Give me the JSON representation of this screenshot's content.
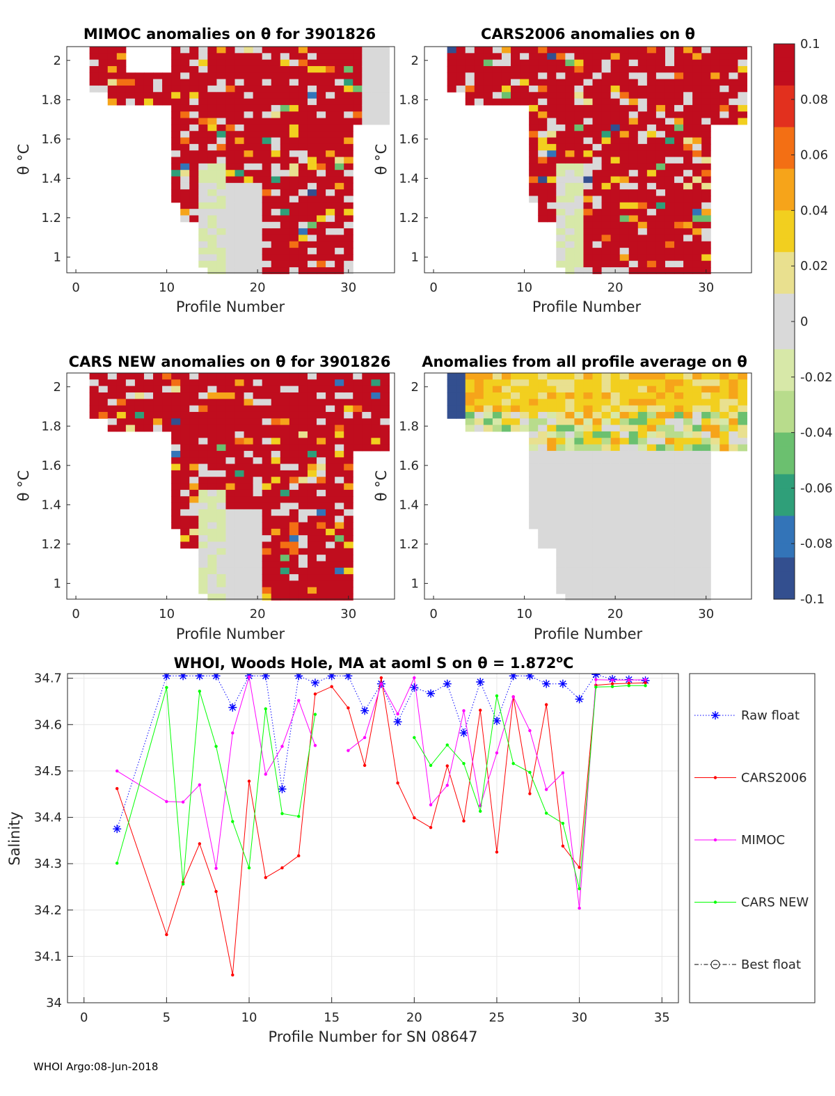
{
  "footer": "WHOI Argo:08-Jun-2018",
  "colorbar": {
    "ticks": [
      "0.1",
      "0.08",
      "0.06",
      "0.04",
      "0.02",
      "0",
      "-0.02",
      "-0.04",
      "-0.06",
      "-0.08",
      "-0.1"
    ],
    "range": [
      -0.1,
      0.1
    ]
  },
  "chart_data": [
    {
      "type": "heatmap",
      "title": "MIMOC anomalies on θ  for 3901826",
      "xlabel": "Profile Number",
      "ylabel": "θ °C",
      "xlim": [
        -1,
        35
      ],
      "ylim": [
        0.92,
        2.07
      ],
      "xticks": [
        "0",
        "10",
        "20",
        "30"
      ],
      "yticks": [
        "1",
        "1.2",
        "1.4",
        "1.6",
        "1.8",
        "2"
      ],
      "pattern": "mostly_positive"
    },
    {
      "type": "heatmap",
      "title": "CARS2006 anomalies on θ",
      "xlabel": "Profile Number",
      "ylabel": "θ °C",
      "xlim": [
        -1,
        35
      ],
      "ylim": [
        0.92,
        2.07
      ],
      "xticks": [
        "0",
        "10",
        "20",
        "30"
      ],
      "yticks": [
        "1",
        "1.2",
        "1.4",
        "1.6",
        "1.8",
        "2"
      ],
      "pattern": "mostly_positive"
    },
    {
      "type": "heatmap",
      "title": "CARS NEW anomalies on θ for 3901826",
      "xlabel": "Profile Number",
      "ylabel": "θ °C",
      "xlim": [
        -1,
        35
      ],
      "ylim": [
        0.92,
        2.07
      ],
      "xticks": [
        "0",
        "10",
        "20",
        "30"
      ],
      "yticks": [
        "1",
        "1.2",
        "1.4",
        "1.6",
        "1.8",
        "2"
      ],
      "pattern": "mostly_positive"
    },
    {
      "type": "heatmap",
      "title": "Anomalies from all profile average on θ",
      "xlabel": "Profile Number",
      "ylabel": "θ °C",
      "xlim": [
        -1,
        35
      ],
      "ylim": [
        0.92,
        2.07
      ],
      "xticks": [
        "0",
        "10",
        "20",
        "30"
      ],
      "yticks": [
        "1",
        "1.2",
        "1.4",
        "1.6",
        "1.8",
        "2"
      ],
      "pattern": "near_zero"
    },
    {
      "type": "line",
      "title": "WHOI, Woods Hole, MA at aoml S on θ = 1.872°C",
      "xlabel": "Profile Number for SN 08647",
      "ylabel": "Salinity",
      "xlim": [
        -1,
        36
      ],
      "ylim": [
        34,
        34.71
      ],
      "xticks": [
        0,
        5,
        10,
        15,
        20,
        25,
        30,
        35
      ],
      "yticks": [
        34,
        34.1,
        34.2,
        34.3,
        34.4,
        34.5,
        34.6,
        34.7
      ],
      "ytick_labels": [
        "34",
        "34.1",
        "34.2",
        "34.3",
        "34.4",
        "34.5",
        "34.6",
        "34.7"
      ],
      "legend": [
        "Raw float",
        "CARS2006",
        "MIMOC",
        "CARS NEW",
        "Best float"
      ],
      "series": [
        {
          "name": "Raw float",
          "color": "#0000ff",
          "style": "dotted",
          "marker": "star",
          "x": [
            2,
            5,
            6,
            7,
            8,
            9,
            10,
            11,
            12,
            13,
            14,
            15,
            16,
            17,
            18,
            19,
            20,
            21,
            22,
            23,
            24,
            25,
            26,
            27,
            28,
            29,
            30,
            31,
            32,
            33,
            34
          ],
          "y": [
            34.375,
            34.705,
            34.705,
            34.705,
            34.705,
            34.637,
            34.705,
            34.705,
            34.461,
            34.705,
            34.69,
            34.705,
            34.705,
            34.63,
            34.688,
            34.606,
            34.68,
            34.667,
            34.688,
            34.582,
            34.692,
            34.608,
            34.705,
            34.705,
            34.688,
            34.688,
            34.655,
            34.708,
            34.698,
            34.697,
            34.695
          ]
        },
        {
          "name": "CARS2006",
          "color": "#ff0000",
          "style": "solid",
          "marker": "dot",
          "x": [
            2,
            5,
            6,
            7,
            8,
            9,
            10,
            11,
            12,
            13,
            14,
            15,
            16,
            17,
            18,
            19,
            20,
            21,
            22,
            23,
            24,
            25,
            26,
            27,
            28,
            29,
            30,
            31,
            32,
            33,
            34
          ],
          "y": [
            34.462,
            34.147,
            34.26,
            34.343,
            34.24,
            34.06,
            34.478,
            34.27,
            34.291,
            34.317,
            34.666,
            34.682,
            34.636,
            34.512,
            34.701,
            34.474,
            34.399,
            34.378,
            34.511,
            34.392,
            34.631,
            34.325,
            34.66,
            34.451,
            34.643,
            34.338,
            34.292,
            34.685,
            34.688,
            34.689,
            34.69
          ],
          "gaps_after": []
        },
        {
          "name": "MIMOC",
          "color": "#ff00ff",
          "style": "solid",
          "marker": "dot",
          "x": [
            2,
            5,
            6,
            7,
            8,
            9,
            10,
            11,
            12,
            13,
            14,
            16,
            17,
            18,
            19,
            20,
            21,
            22,
            23,
            24,
            25,
            26,
            27,
            28,
            29,
            30,
            31,
            32,
            33,
            34
          ],
          "y": [
            34.5,
            34.434,
            34.433,
            34.47,
            34.29,
            34.582,
            34.703,
            34.493,
            34.553,
            34.652,
            34.555,
            34.544,
            34.572,
            34.688,
            34.623,
            34.701,
            34.427,
            34.469,
            34.63,
            34.425,
            34.539,
            34.66,
            34.587,
            34.46,
            34.496,
            34.204,
            34.697,
            34.696,
            34.696,
            34.697
          ],
          "gaps_after": [
            14
          ]
        },
        {
          "name": "CARS NEW",
          "color": "#00ff00",
          "style": "solid",
          "marker": "dot",
          "x": [
            2,
            5,
            6,
            7,
            8,
            9,
            10,
            11,
            12,
            13,
            14,
            20,
            21,
            22,
            23,
            24,
            25,
            26,
            27,
            28,
            29,
            30,
            31,
            32,
            33,
            34
          ],
          "y": [
            34.301,
            34.68,
            34.256,
            34.672,
            34.553,
            34.391,
            34.291,
            34.634,
            34.408,
            34.402,
            34.622,
            34.572,
            34.512,
            34.556,
            34.516,
            34.413,
            34.662,
            34.516,
            34.497,
            34.409,
            34.387,
            34.246,
            34.681,
            34.682,
            34.684,
            34.684
          ],
          "gaps_after": [
            14
          ]
        },
        {
          "name": "Best float",
          "color": "#000000",
          "style": "dashdot",
          "marker": "circle",
          "x": [],
          "y": []
        }
      ]
    }
  ]
}
